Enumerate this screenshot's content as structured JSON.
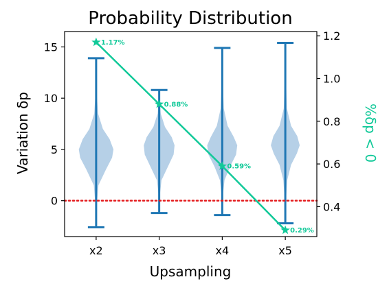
{
  "chart_data": {
    "type": "violin",
    "title": "Probability Distribution",
    "xlabel": "Upsampling",
    "ylabel": "Variation δp",
    "y2label": "%δp < 0",
    "categories": [
      "x2",
      "x3",
      "x4",
      "x5"
    ],
    "ylim": [
      -3.5,
      16.5
    ],
    "y2lim": [
      0.26,
      1.22
    ],
    "yticks": [
      0,
      5,
      10,
      15
    ],
    "y2ticks": [
      0.4,
      0.6,
      0.8,
      1.0,
      1.2
    ],
    "violins": [
      {
        "category": "x2",
        "min": -2.6,
        "max": 13.9,
        "profile": [
          [
            -2.6,
            0.0
          ],
          [
            -0.5,
            0.03
          ],
          [
            1.5,
            0.12
          ],
          [
            3.0,
            0.5
          ],
          [
            4.2,
            0.83
          ],
          [
            5.0,
            0.9
          ],
          [
            6.0,
            0.7
          ],
          [
            7.0,
            0.35
          ],
          [
            8.5,
            0.1
          ],
          [
            10.5,
            0.03
          ],
          [
            13.9,
            0.0
          ]
        ]
      },
      {
        "category": "x3",
        "min": -1.2,
        "max": 10.8,
        "profile": [
          [
            -1.2,
            0.0
          ],
          [
            0.5,
            0.03
          ],
          [
            2.0,
            0.12
          ],
          [
            3.3,
            0.45
          ],
          [
            4.5,
            0.75
          ],
          [
            5.4,
            0.8
          ],
          [
            6.2,
            0.65
          ],
          [
            7.2,
            0.3
          ],
          [
            8.5,
            0.08
          ],
          [
            10.8,
            0.0
          ]
        ]
      },
      {
        "category": "x4",
        "min": -1.4,
        "max": 14.9,
        "profile": [
          [
            -1.4,
            0.0
          ],
          [
            0.5,
            0.03
          ],
          [
            2.0,
            0.12
          ],
          [
            3.3,
            0.4
          ],
          [
            4.5,
            0.72
          ],
          [
            5.4,
            0.78
          ],
          [
            6.2,
            0.6
          ],
          [
            7.3,
            0.28
          ],
          [
            9.0,
            0.08
          ],
          [
            11.5,
            0.03
          ],
          [
            14.9,
            0.0
          ]
        ]
      },
      {
        "category": "x5",
        "min": -2.2,
        "max": 15.4,
        "profile": [
          [
            -2.2,
            0.0
          ],
          [
            0.0,
            0.03
          ],
          [
            2.0,
            0.1
          ],
          [
            3.5,
            0.3
          ],
          [
            4.6,
            0.6
          ],
          [
            5.4,
            0.75
          ],
          [
            6.3,
            0.62
          ],
          [
            7.3,
            0.3
          ],
          [
            9.0,
            0.08
          ],
          [
            12.0,
            0.03
          ],
          [
            15.4,
            0.0
          ]
        ]
      }
    ],
    "line_series": {
      "x": [
        "x2",
        "x3",
        "x4",
        "x5"
      ],
      "values": [
        1.17,
        0.88,
        0.59,
        0.29
      ],
      "labels": [
        "1.17%",
        "0.88%",
        "0.59%",
        "0.29%"
      ],
      "color": "#12c999"
    },
    "reference_line": {
      "y": 0,
      "color": "#e31a1c",
      "style": "dotted"
    },
    "violin_color": "#1f77b4",
    "violin_fill": "#a9c8e3"
  }
}
